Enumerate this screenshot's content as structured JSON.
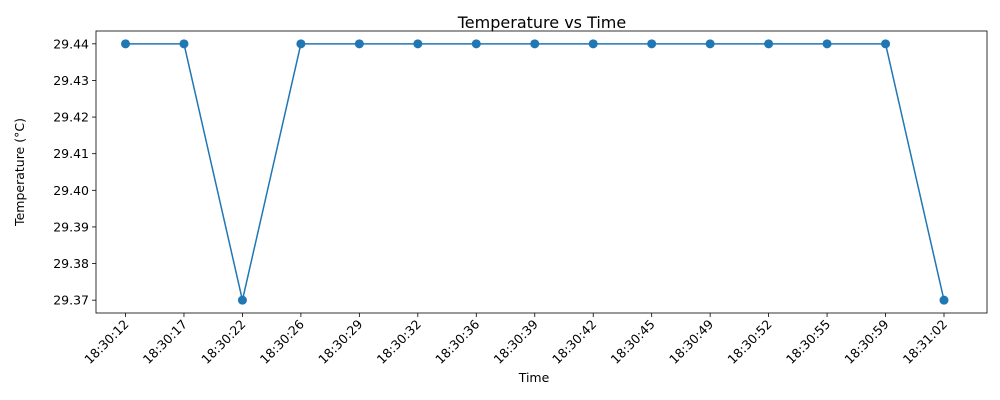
{
  "chart_data": {
    "type": "line",
    "title": "Temperature vs Time",
    "xlabel": "Time",
    "ylabel": "Temperature (°C)",
    "categories": [
      "18:30:12",
      "18:30:17",
      "18:30:22",
      "18:30:26",
      "18:30:29",
      "18:30:32",
      "18:30:36",
      "18:30:39",
      "18:30:42",
      "18:30:45",
      "18:30:49",
      "18:30:52",
      "18:30:55",
      "18:30:59",
      "18:31:02"
    ],
    "series": [
      {
        "values": [
          29.44,
          29.44,
          29.37,
          29.44,
          29.44,
          29.44,
          29.44,
          29.44,
          29.44,
          29.44,
          29.44,
          29.44,
          29.44,
          29.44,
          29.37
        ],
        "color": "#1f77b4",
        "marker": "circle"
      }
    ],
    "yticks": [
      "29.37",
      "29.38",
      "29.39",
      "29.40",
      "29.41",
      "29.42",
      "29.43",
      "29.44"
    ],
    "ylim": [
      29.3665,
      29.4435
    ],
    "grid": false,
    "legend": false
  }
}
